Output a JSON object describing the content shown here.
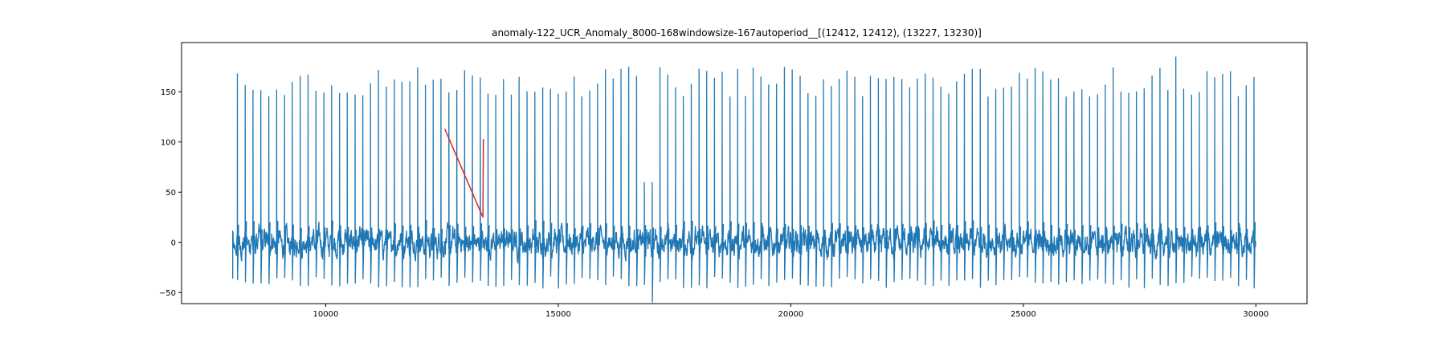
{
  "chart_data": {
    "type": "line",
    "title": "anomaly-122_UCR_Anomaly_8000-168windowsize-167autoperiod__[(12412, 12412), (13227, 13230)]",
    "xlabel": "",
    "ylabel": "",
    "xlim": [
      6900,
      31100
    ],
    "ylim": [
      -61,
      199
    ],
    "x_ticks": [
      10000,
      15000,
      20000,
      25000,
      30000
    ],
    "x_tick_labels": [
      "10000",
      "15000",
      "20000",
      "25000",
      "30000"
    ],
    "y_ticks": [
      -50,
      0,
      50,
      100,
      150
    ],
    "y_tick_labels": [
      "−50",
      "0",
      "50",
      "100",
      "150"
    ],
    "grid": false,
    "legend": "none",
    "series": [
      {
        "color": "#1f77b4",
        "x_range": [
          8000,
          30000
        ],
        "period_samples": 168,
        "baseline": 0,
        "peak_typical": 160,
        "peak_max": 185,
        "peak_max_x": 28280,
        "trough_typical": -40,
        "trough_min": -60,
        "trough_min_x": 17050
      },
      {
        "color": "#d62728",
        "x": [
          12560,
          13380,
          13390
        ],
        "y": [
          113,
          25,
          103
        ]
      }
    ]
  }
}
